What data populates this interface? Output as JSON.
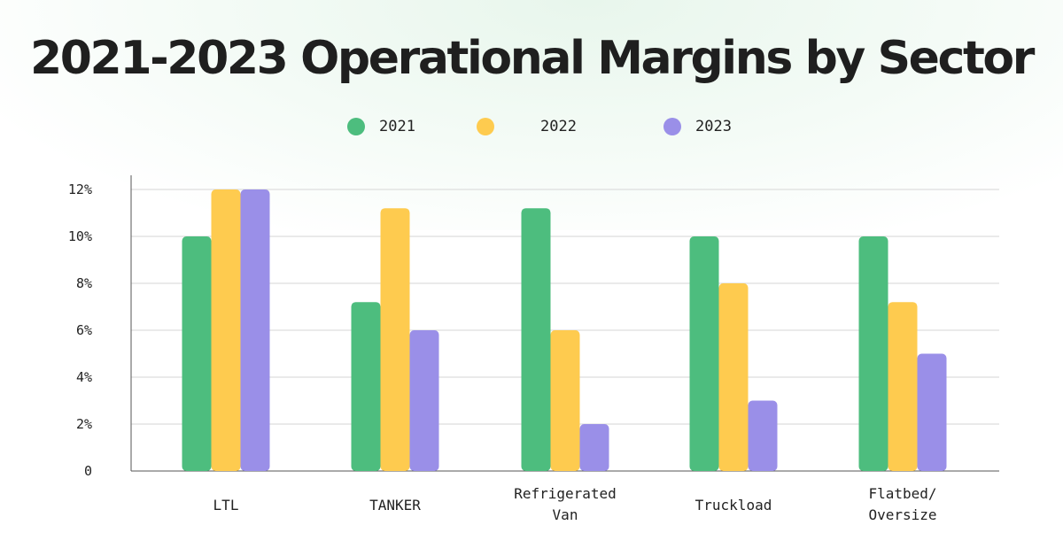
{
  "chart_data": {
    "type": "bar",
    "title": "2021-2023 Operational Margins by Sector",
    "xlabel": "",
    "ylabel": "",
    "categories": [
      "LTL",
      "TANKER",
      "Refrigerated Van",
      "Truckload",
      "Flatbed/ Oversize"
    ],
    "category_lines": [
      [
        "LTL"
      ],
      [
        "TANKER"
      ],
      [
        "Refrigerated",
        "Van"
      ],
      [
        "Truckload"
      ],
      [
        "Flatbed/",
        "Oversize"
      ]
    ],
    "series": [
      {
        "name": "2021",
        "color": "#4dbd7e",
        "values": [
          10,
          7.2,
          11.2,
          10,
          10
        ]
      },
      {
        "name": "2022",
        "color": "#fecb4f",
        "values": [
          12,
          11.2,
          6,
          8,
          7.2
        ]
      },
      {
        "name": "2023",
        "color": "#9a8fe8",
        "values": [
          12,
          6,
          2,
          3,
          5
        ]
      }
    ],
    "ylim": [
      0,
      12
    ],
    "yticks": [
      {
        "value": 0,
        "label": "0"
      },
      {
        "value": 2,
        "label": "2%"
      },
      {
        "value": 4,
        "label": "4%"
      },
      {
        "value": 6,
        "label": "6%"
      },
      {
        "value": 8,
        "label": "8%"
      },
      {
        "value": 10,
        "label": "10%"
      },
      {
        "value": 12,
        "label": "12%"
      }
    ],
    "grid": true,
    "legend_position": "top-center"
  }
}
